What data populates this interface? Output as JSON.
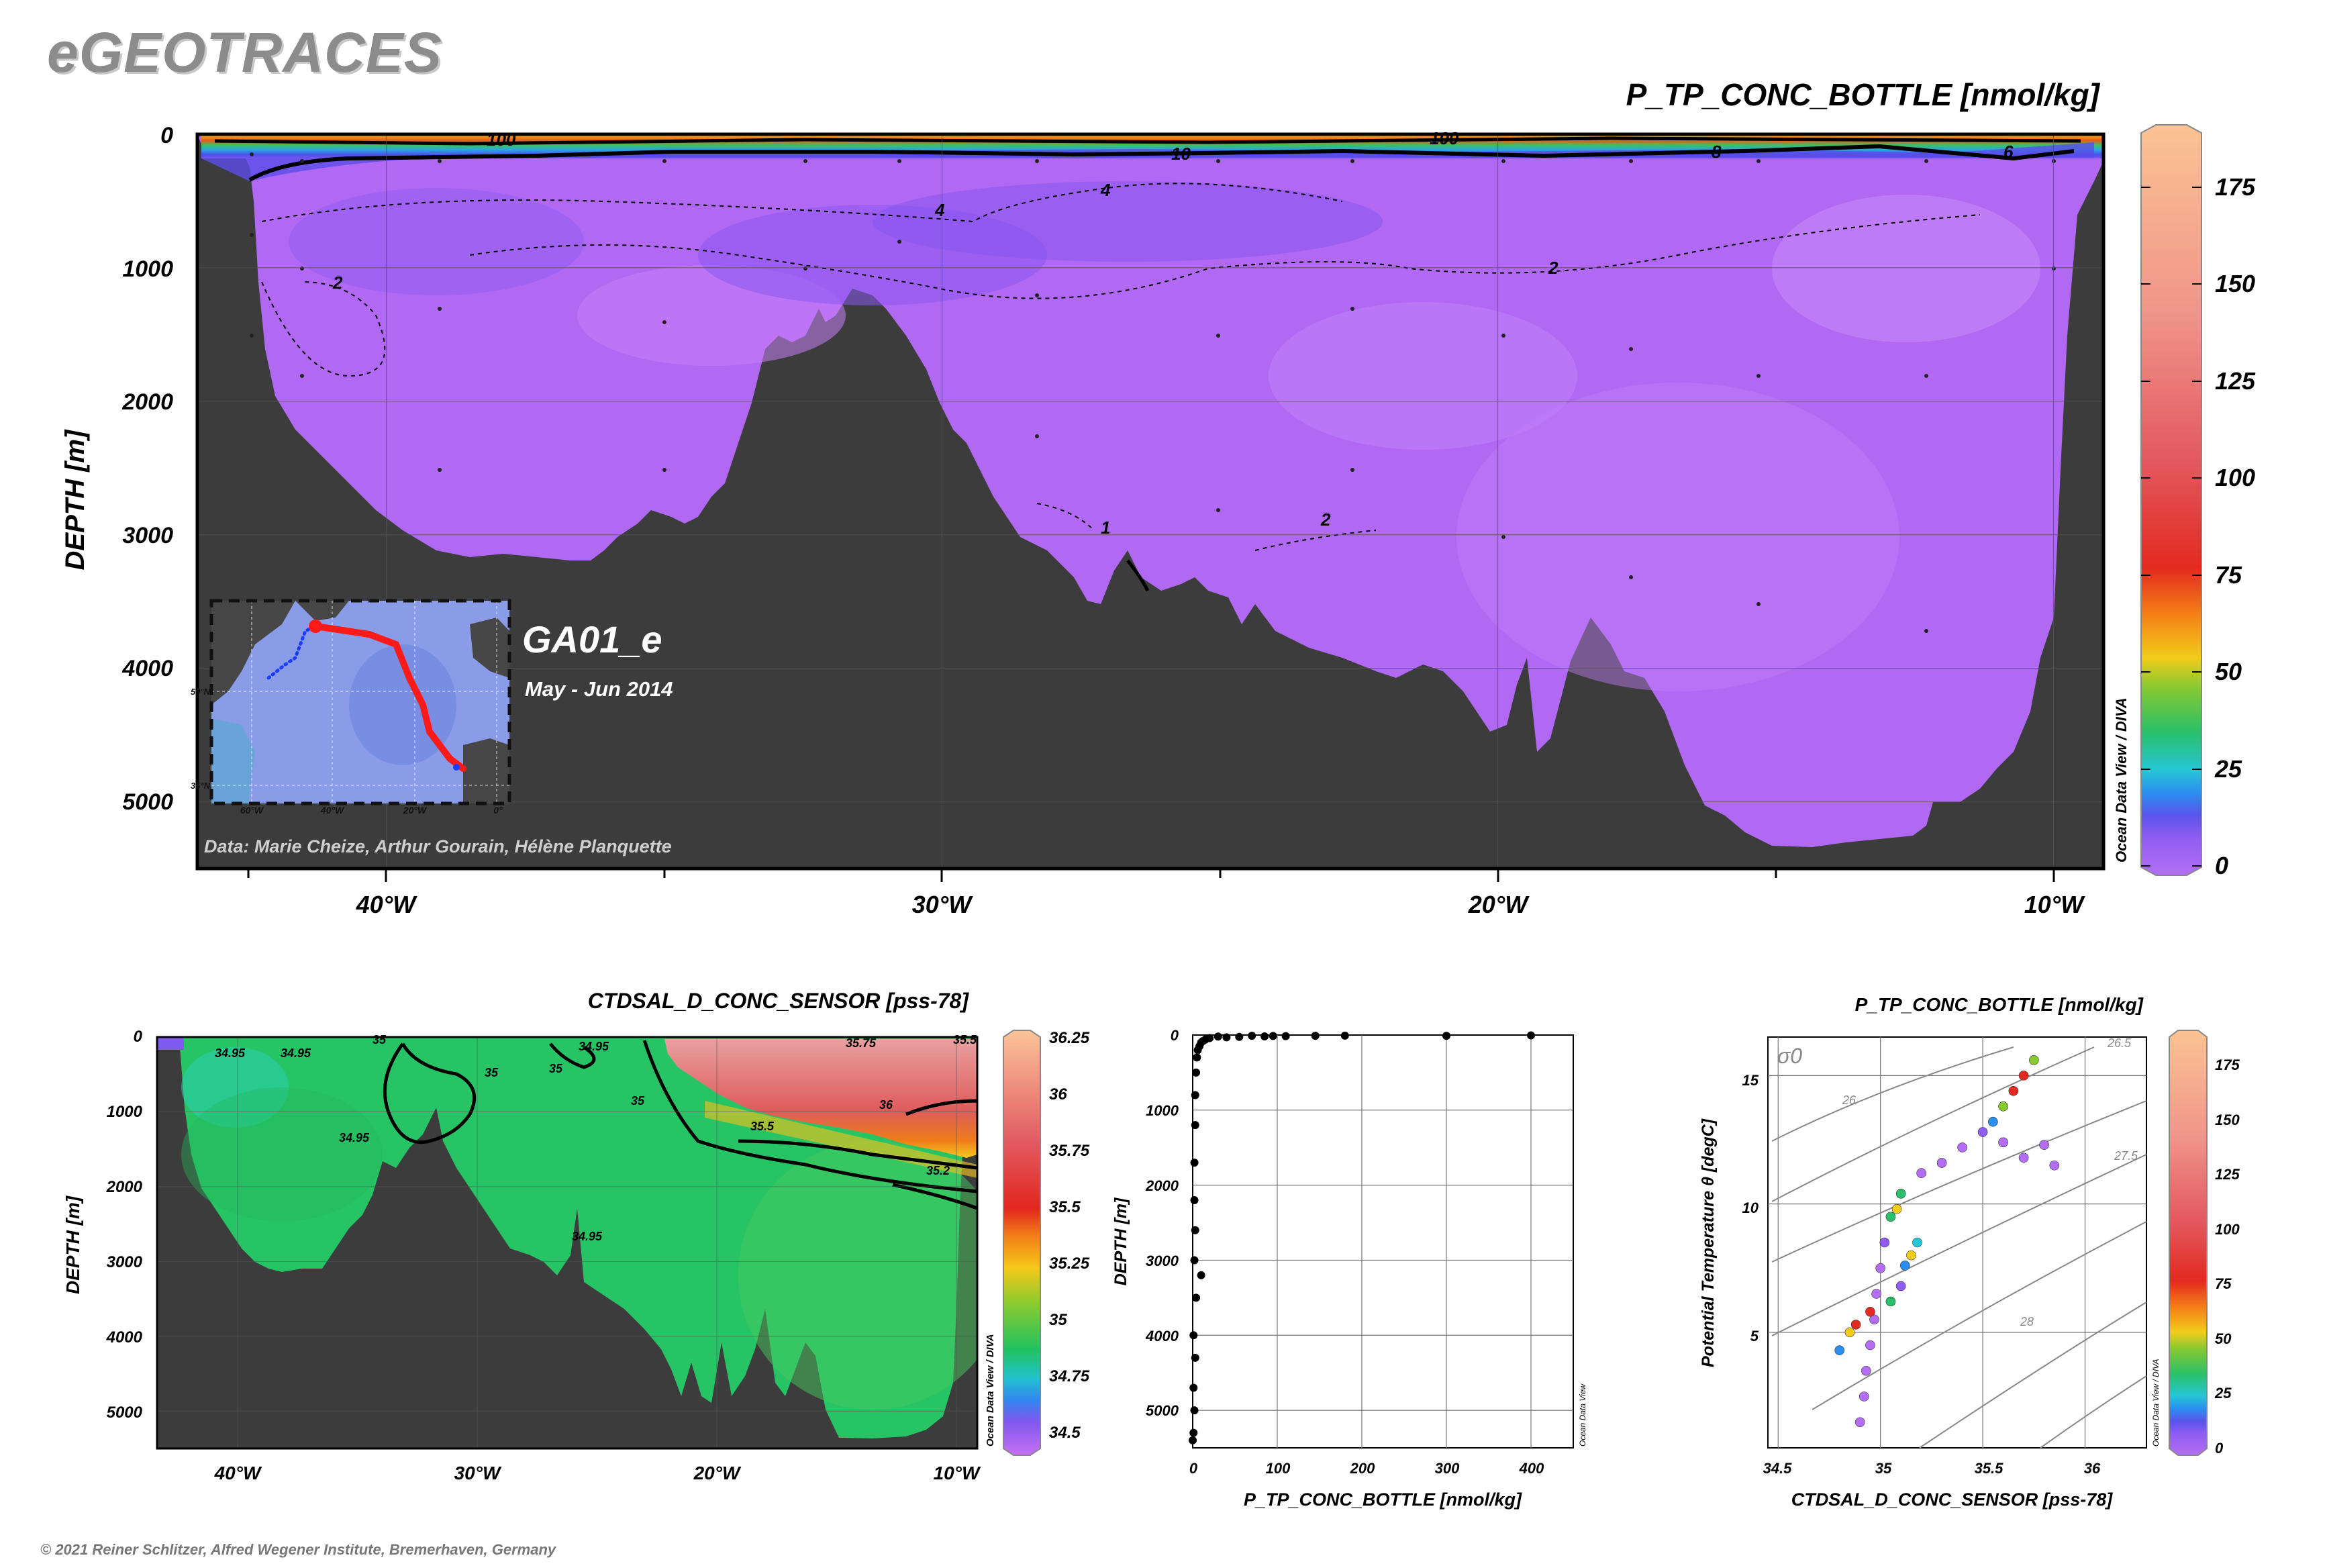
{
  "app": {
    "logo": "eGEOTRACES",
    "copyright": "© 2021 Reiner Schlitzer, Alfred Wegener Institute, Bremerhaven, Germany",
    "odv_credit_diva": "Ocean Data View / DIVA",
    "odv_credit": "Ocean Data View"
  },
  "colors": {
    "bathymetry": "#3c3c3c",
    "section_background": "#b169f4",
    "contour": "#000000",
    "cruise_track": "#ff1a1a",
    "cruise_track_start": "#1a3cff"
  },
  "chart_data": [
    {
      "type": "heatmap",
      "name": "main-section",
      "title": "P_TP_CONC_BOTTLE [nmol/kg]",
      "ylabel": "DEPTH [m]",
      "xlabel": "",
      "x_ticks": [
        "40°W",
        "30°W",
        "20°W",
        "10°W"
      ],
      "x_tick_values": [
        -40,
        -30,
        -20,
        -10
      ],
      "xlim": [
        -43.4,
        -9.1
      ],
      "y_ticks": [
        "0",
        "1000",
        "2000",
        "3000",
        "4000",
        "5000"
      ],
      "y_tick_values": [
        0,
        1000,
        2000,
        3000,
        4000,
        5000
      ],
      "ylim": [
        5500,
        0
      ],
      "contour_labels": [
        "100",
        "10",
        "100",
        "8",
        "6",
        "4",
        "4",
        "2",
        "2",
        "2",
        "1"
      ],
      "colorbar": {
        "ticks": [
          "0",
          "25",
          "50",
          "75",
          "100",
          "125",
          "150",
          "175"
        ],
        "tick_values": [
          0,
          25,
          50,
          75,
          100,
          125,
          150,
          175
        ],
        "range": [
          0,
          190
        ]
      },
      "cruise": {
        "label": "GA01_e",
        "dates": "May - Jun 2014",
        "credit": "Data: Marie Cheize, Arthur Gourain, Hélène Planquette"
      },
      "inset_map": {
        "x_ticks": [
          "60°W",
          "40°W",
          "20°W",
          "0°"
        ],
        "y_ticks": [
          "50°N",
          "35°N"
        ]
      },
      "grid": true
    },
    {
      "type": "heatmap",
      "name": "salinity-section",
      "title": "CTDSAL_D_CONC_SENSOR [pss-78]",
      "ylabel": "DEPTH [m]",
      "x_ticks": [
        "40°W",
        "30°W",
        "20°W",
        "10°W"
      ],
      "x_tick_values": [
        -40,
        -30,
        -20,
        -10
      ],
      "y_ticks": [
        "0",
        "1000",
        "2000",
        "3000",
        "4000",
        "5000"
      ],
      "y_tick_values": [
        0,
        1000,
        2000,
        3000,
        4000,
        5000
      ],
      "ylim": [
        5500,
        0
      ],
      "contour_labels": [
        "34.95",
        "34.95",
        "35",
        "34.95",
        "35",
        "35",
        "35",
        "34.95",
        "35.5",
        "36",
        "35.2",
        "34.95",
        "35.75",
        "35.5"
      ],
      "colorbar": {
        "ticks": [
          "34.5",
          "34.75",
          "35",
          "35.25",
          "35.5",
          "35.75",
          "36",
          "36.25"
        ],
        "tick_values": [
          34.5,
          34.75,
          35,
          35.25,
          35.5,
          35.75,
          36,
          36.25
        ],
        "range": [
          34.42,
          36.33
        ]
      },
      "grid": true
    },
    {
      "type": "scatter",
      "name": "depth-profile",
      "xlabel": "P_TP_CONC_BOTTLE [nmol/kg]",
      "ylabel": "DEPTH [m]",
      "xlim": [
        0,
        450
      ],
      "ylim": [
        5500,
        0
      ],
      "x_ticks": [
        "0",
        "100",
        "200",
        "300",
        "400"
      ],
      "x_tick_values": [
        0,
        100,
        200,
        300,
        400
      ],
      "y_ticks": [
        "0",
        "1000",
        "2000",
        "3000",
        "4000",
        "5000"
      ],
      "y_tick_values": [
        0,
        1000,
        2000,
        3000,
        4000,
        5000
      ],
      "points": [
        [
          400,
          5
        ],
        [
          300,
          10
        ],
        [
          180,
          8
        ],
        [
          145,
          10
        ],
        [
          110,
          15
        ],
        [
          95,
          12
        ],
        [
          85,
          18
        ],
        [
          70,
          10
        ],
        [
          55,
          25
        ],
        [
          40,
          30
        ],
        [
          30,
          20
        ],
        [
          20,
          40
        ],
        [
          15,
          60
        ],
        [
          12,
          80
        ],
        [
          10,
          100
        ],
        [
          8,
          150
        ],
        [
          6,
          200
        ],
        [
          5,
          300
        ],
        [
          4,
          500
        ],
        [
          3,
          800
        ],
        [
          3,
          1200
        ],
        [
          2,
          1700
        ],
        [
          2,
          2200
        ],
        [
          3,
          2600
        ],
        [
          2,
          3000
        ],
        [
          10,
          3200
        ],
        [
          4,
          3500
        ],
        [
          1,
          4000
        ],
        [
          3,
          4300
        ],
        [
          1,
          4700
        ],
        [
          2,
          5000
        ],
        [
          1,
          5300
        ],
        [
          0,
          5400
        ]
      ],
      "grid": true
    },
    {
      "type": "scatter",
      "name": "ts-diagram",
      "title": "P_TP_CONC_BOTTLE [nmol/kg]",
      "xlabel": "CTDSAL_D_CONC_SENSOR [pss-78]",
      "ylabel": "Potential Temperature θ [degC]",
      "xlim": [
        34.45,
        36.3
      ],
      "ylim": [
        0.5,
        16.5
      ],
      "x_ticks": [
        "34.5",
        "35",
        "35.5",
        "36"
      ],
      "x_tick_values": [
        34.5,
        35,
        35.5,
        36
      ],
      "y_ticks": [
        "5",
        "10",
        "15"
      ],
      "y_tick_values": [
        5,
        10,
        15
      ],
      "isopycnal_label": "σ0",
      "isopycnal_values": [
        "26",
        "26.5",
        "27.5",
        "28"
      ],
      "colorbar": {
        "ticks": [
          "0",
          "25",
          "50",
          "75",
          "100",
          "125",
          "150",
          "175"
        ],
        "tick_values": [
          0,
          25,
          50,
          75,
          100,
          125,
          150,
          175
        ],
        "range": [
          0,
          190
        ]
      },
      "points": [
        [
          34.9,
          1.5,
          3
        ],
        [
          34.92,
          2.5,
          3
        ],
        [
          34.93,
          3.5,
          4
        ],
        [
          34.95,
          4.5,
          5
        ],
        [
          34.97,
          5.5,
          4
        ],
        [
          34.98,
          6.5,
          6
        ],
        [
          35.0,
          7.5,
          5
        ],
        [
          35.02,
          8.5,
          12
        ],
        [
          35.05,
          9.5,
          40
        ],
        [
          35.08,
          9.8,
          70
        ],
        [
          35.1,
          10.4,
          45
        ],
        [
          35.2,
          11.2,
          8
        ],
        [
          35.3,
          11.6,
          6
        ],
        [
          35.4,
          12.2,
          5
        ],
        [
          35.5,
          12.8,
          10
        ],
        [
          35.55,
          13.2,
          20
        ],
        [
          35.6,
          13.8,
          60
        ],
        [
          35.65,
          14.4,
          90
        ],
        [
          35.7,
          15.0,
          100
        ],
        [
          35.75,
          15.6,
          55
        ],
        [
          35.8,
          12.3,
          6
        ],
        [
          35.85,
          11.5,
          4
        ],
        [
          35.7,
          11.8,
          5
        ],
        [
          35.6,
          12.4,
          7
        ],
        [
          34.8,
          4.3,
          25
        ],
        [
          34.85,
          5.0,
          70
        ],
        [
          34.88,
          5.3,
          90
        ],
        [
          34.95,
          5.8,
          100
        ],
        [
          35.05,
          6.2,
          50
        ],
        [
          35.1,
          6.8,
          12
        ],
        [
          35.12,
          7.6,
          20
        ],
        [
          35.15,
          8.0,
          80
        ],
        [
          35.18,
          8.5,
          30
        ]
      ],
      "grid": true
    }
  ]
}
